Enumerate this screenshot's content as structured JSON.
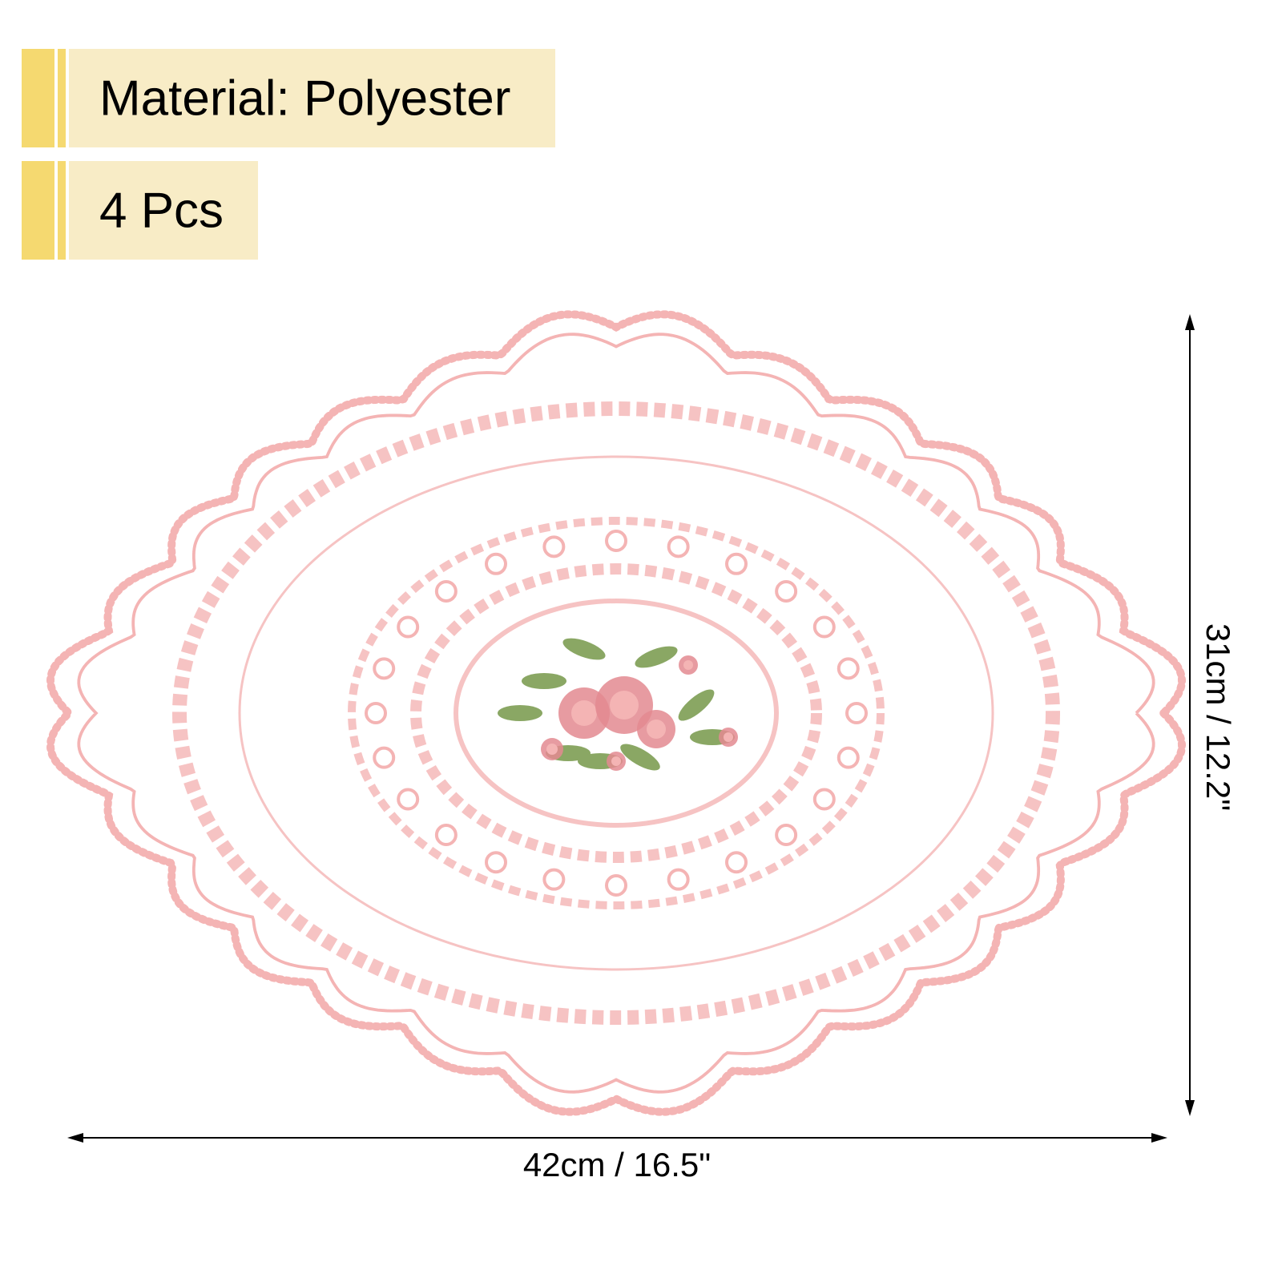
{
  "banners": [
    {
      "text": "Material: Polyester"
    },
    {
      "text": "4 Pcs"
    }
  ],
  "dimensions": {
    "width": "42cm / 16.5\"",
    "height": "31cm / 12.2\""
  },
  "colors": {
    "bar": "#f5d970",
    "banner_bg": "#f8ecc6",
    "lace": "#f4b4b4",
    "rose": "#e38a90",
    "leaf": "#8aa764"
  }
}
